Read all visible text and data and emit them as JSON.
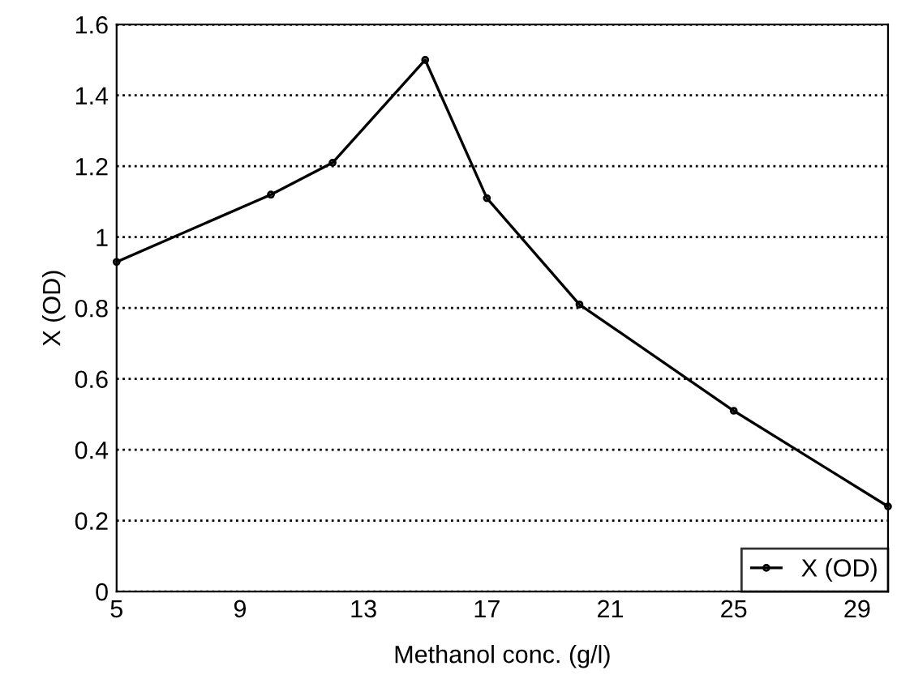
{
  "chart_data": {
    "type": "line",
    "xlabel": "Methanol conc. (g/l)",
    "ylabel": "X (OD)",
    "x": [
      5,
      10,
      12,
      15,
      17,
      20,
      25,
      30
    ],
    "series": [
      {
        "name": "X (OD)",
        "color": "#000000",
        "values": [
          0.93,
          1.12,
          1.21,
          1.5,
          1.11,
          0.81,
          0.51,
          0.24
        ]
      }
    ],
    "xlim": [
      5,
      30
    ],
    "xticks": [
      5,
      9,
      13,
      17,
      21,
      25,
      29
    ],
    "ylim": [
      0,
      1.6
    ],
    "yticks": [
      0,
      0.2,
      0.4,
      0.6,
      0.8,
      1,
      1.2,
      1.4,
      1.6
    ],
    "grid": "y",
    "legend": "bottom right",
    "marker": "circle",
    "line_style": "solid"
  }
}
